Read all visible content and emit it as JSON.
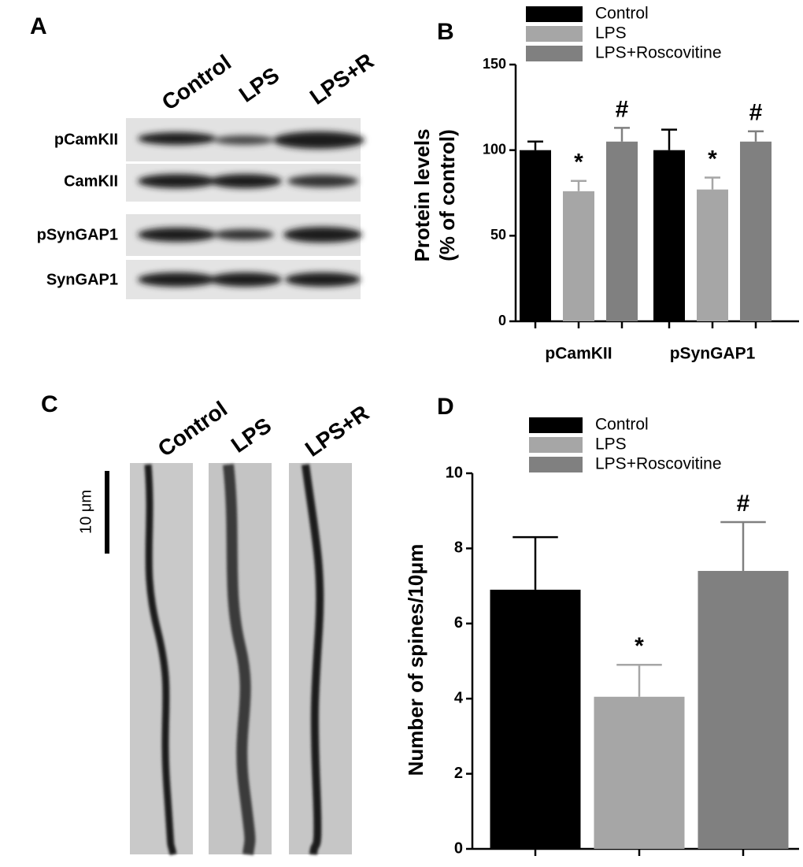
{
  "blot": {
    "panel": "A",
    "lanes": [
      "Control",
      "LPS",
      "LPS+R"
    ],
    "rows": [
      "pCamKII",
      "CamKII",
      "pSynGAP1",
      "SynGAP1"
    ]
  },
  "micrographs": {
    "panel": "C",
    "lanes": [
      "Control",
      "LPS",
      "LPS+R"
    ],
    "scale_bar": "10 μm"
  },
  "chart_data": [
    {
      "type": "bar",
      "panel": "B",
      "ylabel": [
        "Protein levels",
        "(% of control)"
      ],
      "categories": [
        "pCamKII",
        "pSynGAP1"
      ],
      "series": [
        {
          "name": "Control",
          "color": "#000000",
          "values": [
            100,
            100
          ],
          "errors": [
            5,
            12
          ],
          "markers": [
            null,
            null
          ]
        },
        {
          "name": "LPS",
          "color": "#a6a6a6",
          "values": [
            76,
            77
          ],
          "errors": [
            6,
            7
          ],
          "markers": [
            "*",
            "*"
          ]
        },
        {
          "name": "LPS+Roscovitine",
          "color": "#808080",
          "values": [
            105,
            105
          ],
          "errors": [
            8,
            6
          ],
          "markers": [
            "#",
            "#"
          ]
        }
      ],
      "ylim": [
        0,
        150
      ],
      "yticks": [
        0,
        50,
        100,
        150
      ]
    },
    {
      "type": "bar",
      "panel": "D",
      "ylabel": [
        "Number of spines/10μm"
      ],
      "categories": [
        null
      ],
      "series": [
        {
          "name": "Control",
          "color": "#000000",
          "values": [
            6.9
          ],
          "errors": [
            1.4
          ],
          "markers": [
            null
          ]
        },
        {
          "name": "LPS",
          "color": "#a6a6a6",
          "values": [
            4.05
          ],
          "errors": [
            0.85
          ],
          "markers": [
            "*"
          ]
        },
        {
          "name": "LPS+Roscovitine",
          "color": "#808080",
          "values": [
            7.4
          ],
          "errors": [
            1.3
          ],
          "markers": [
            "#"
          ]
        }
      ],
      "ylim": [
        0,
        10
      ],
      "yticks": [
        0,
        2,
        4,
        6,
        8,
        10
      ]
    }
  ]
}
